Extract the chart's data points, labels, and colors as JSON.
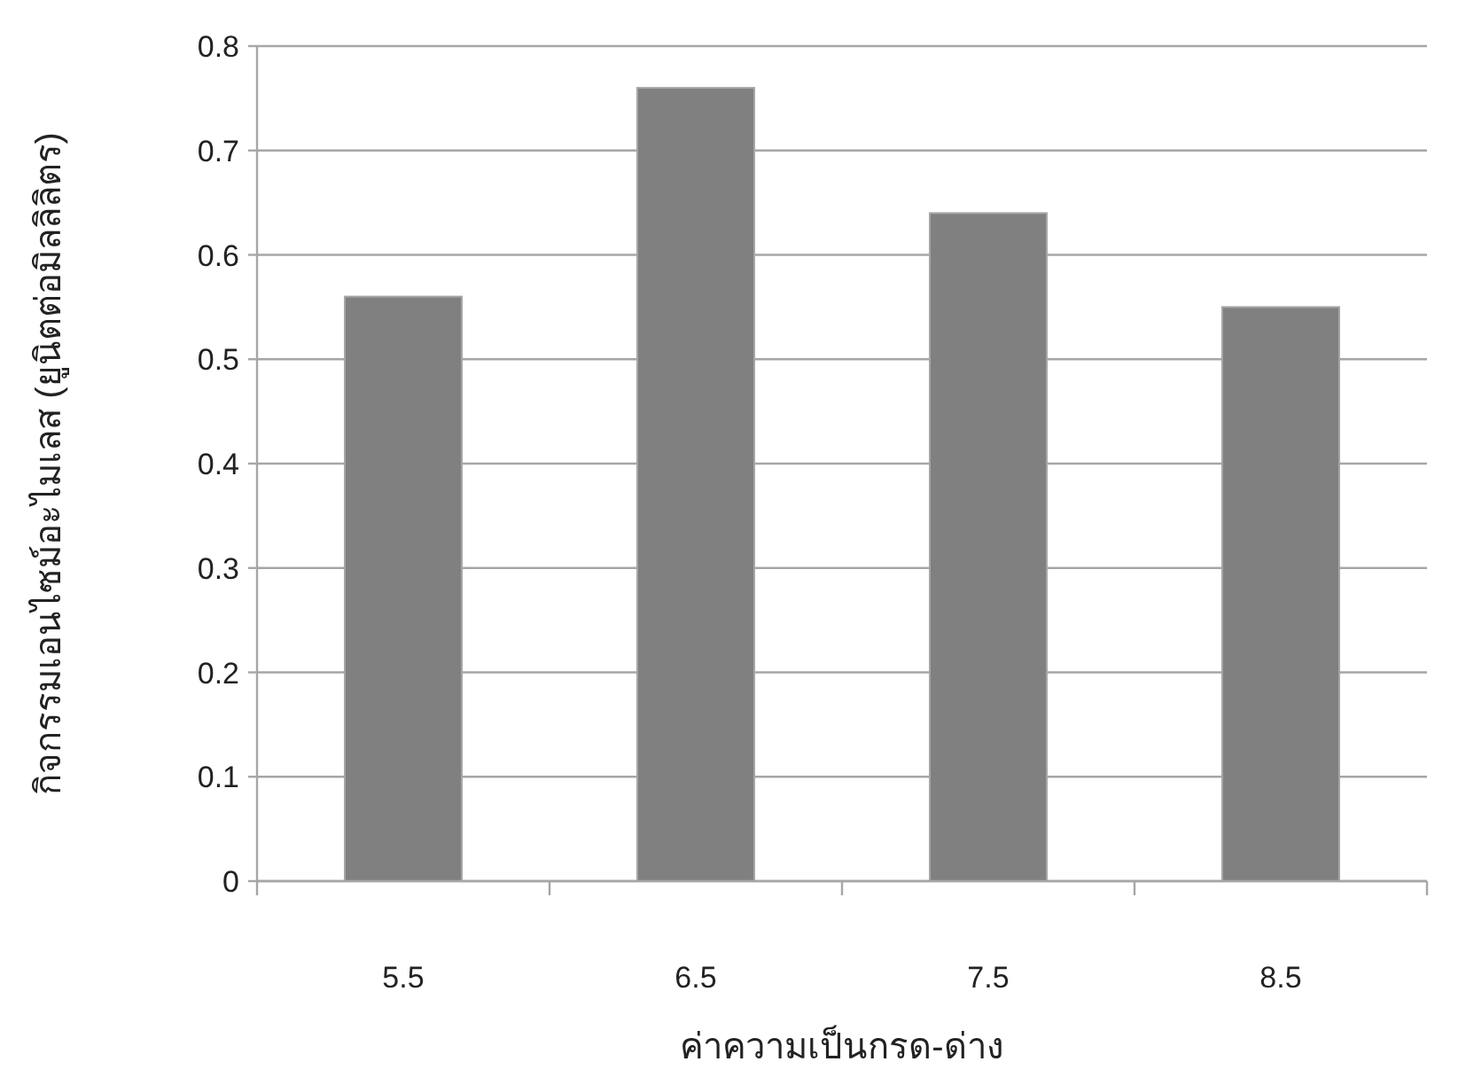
{
  "chart_data": {
    "type": "bar",
    "xlabel": "ค่าความเป็นกรด-ด่าง",
    "ylabel": "กิจกรรมเอนไซม์อะไมเลส (ยูนิตต่อมิลลิลิตร)",
    "categories": [
      "5.5",
      "6.5",
      "7.5",
      "8.5"
    ],
    "values": [
      0.56,
      0.76,
      0.64,
      0.55
    ],
    "color": "#808080",
    "ylim": [
      0,
      0.8
    ],
    "yticks": [
      0,
      0.1,
      0.2,
      0.3,
      0.4,
      0.5,
      0.6,
      0.7,
      0.8
    ],
    "grid": "y"
  }
}
